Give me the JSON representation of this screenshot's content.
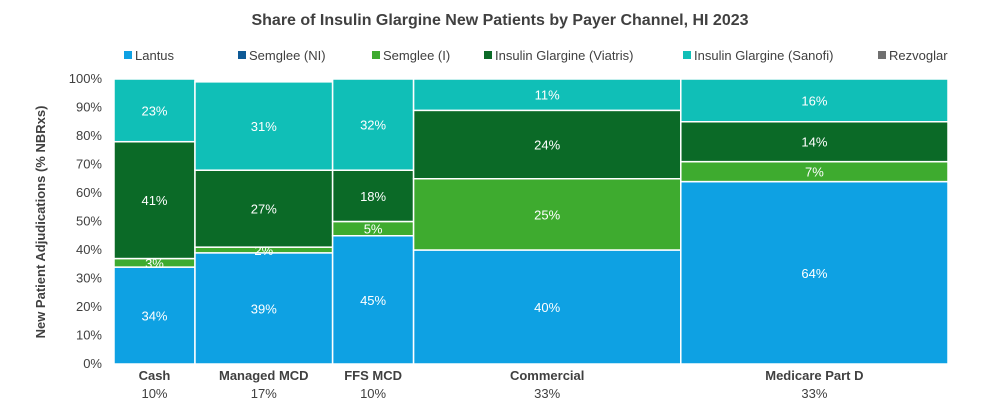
{
  "chart_data": {
    "type": "bar",
    "subtype": "marimekko",
    "title": "Share of Insulin Glargine New Patients by Payer Channel, HI 2023",
    "ylabel": "New Patient Adjudications (% NBRxs)",
    "xlabel": "",
    "ylim": [
      0,
      100
    ],
    "yticks": [
      "0%",
      "10%",
      "20%",
      "30%",
      "40%",
      "50%",
      "60%",
      "70%",
      "80%",
      "90%",
      "100%"
    ],
    "legend_position": "top",
    "series_meta": [
      {
        "name": "Lantus",
        "color": "#0EA1E3"
      },
      {
        "name": "Semglee (NI)",
        "color": "#0E5A96"
      },
      {
        "name": "Semglee (I)",
        "color": "#3EAB2F"
      },
      {
        "name": "Insulin Glargine (Viatris)",
        "color": "#0B6A27"
      },
      {
        "name": "Insulin Glargine (Sanofi)",
        "color": "#10BFB7"
      },
      {
        "name": "Rezvoglar",
        "color": "#707070"
      }
    ],
    "categories": [
      {
        "name": "Cash",
        "width_share": 10,
        "width_label": "10%",
        "segments": [
          {
            "series": "Lantus",
            "value": 34,
            "label": "34%"
          },
          {
            "series": "Semglee (I)",
            "value": 3,
            "label": "3%"
          },
          {
            "series": "Insulin Glargine (Viatris)",
            "value": 41,
            "label": "41%"
          },
          {
            "series": "Insulin Glargine (Sanofi)",
            "value": 23,
            "label": "23%"
          }
        ]
      },
      {
        "name": "Managed MCD",
        "width_share": 17,
        "width_label": "17%",
        "segments": [
          {
            "series": "Lantus",
            "value": 39,
            "label": "39%"
          },
          {
            "series": "Semglee (I)",
            "value": 2,
            "label": "2%"
          },
          {
            "series": "Insulin Glargine (Viatris)",
            "value": 27,
            "label": "27%"
          },
          {
            "series": "Insulin Glargine (Sanofi)",
            "value": 31,
            "label": "31%"
          }
        ]
      },
      {
        "name": "FFS MCD",
        "width_share": 10,
        "width_label": "10%",
        "segments": [
          {
            "series": "Lantus",
            "value": 45,
            "label": "45%"
          },
          {
            "series": "Semglee (I)",
            "value": 5,
            "label": "5%"
          },
          {
            "series": "Insulin Glargine (Viatris)",
            "value": 18,
            "label": "18%"
          },
          {
            "series": "Insulin Glargine (Sanofi)",
            "value": 32,
            "label": "32%"
          }
        ]
      },
      {
        "name": "Commercial",
        "width_share": 33,
        "width_label": "33%",
        "segments": [
          {
            "series": "Lantus",
            "value": 40,
            "label": "40%"
          },
          {
            "series": "Semglee (I)",
            "value": 25,
            "label": "25%"
          },
          {
            "series": "Insulin Glargine (Viatris)",
            "value": 24,
            "label": "24%"
          },
          {
            "series": "Insulin Glargine (Sanofi)",
            "value": 11,
            "label": "11%"
          }
        ]
      },
      {
        "name": "Medicare Part D",
        "width_share": 33,
        "width_label": "33%",
        "segments": [
          {
            "series": "Lantus",
            "value": 64,
            "label": "64%"
          },
          {
            "series": "Semglee (I)",
            "value": 7,
            "label": "7%"
          },
          {
            "series": "Insulin Glargine (Viatris)",
            "value": 14,
            "label": "14%"
          },
          {
            "series": "Insulin Glargine (Sanofi)",
            "value": 16,
            "label": "16%"
          }
        ]
      }
    ]
  }
}
